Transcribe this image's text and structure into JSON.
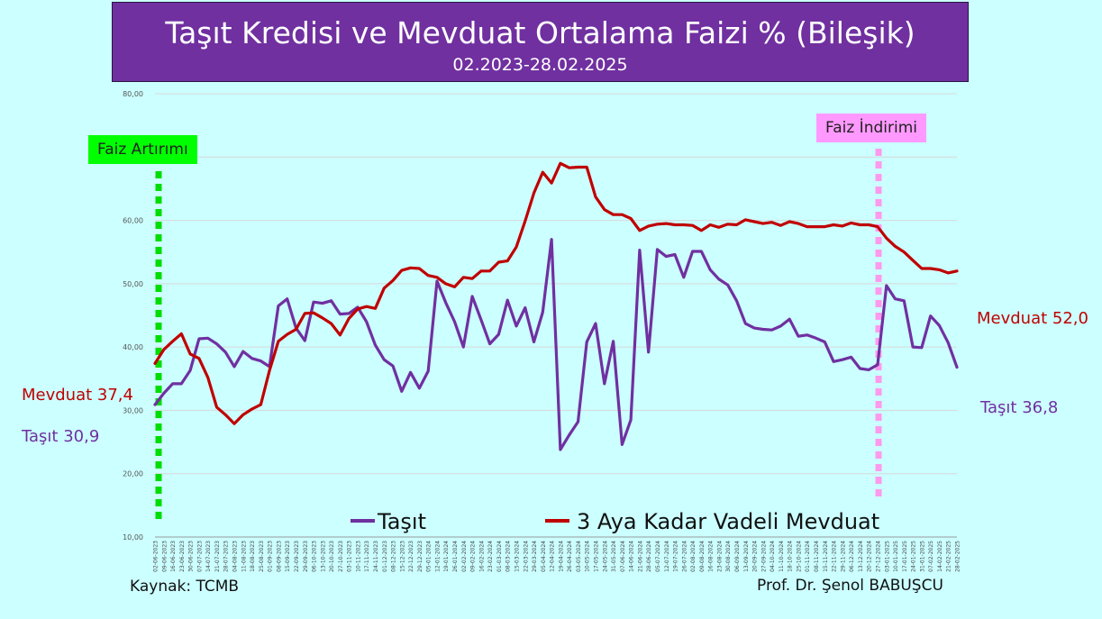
{
  "header": {
    "title": "Taşıt Kredisi ve Mevduat Ortalama Faizi % (Bileşik)",
    "subtitle": "02.2023-28.02.2025"
  },
  "annotations": {
    "rate_hike": "Faiz Artırımı",
    "rate_cut": "Faiz İndirimi",
    "mevduat_start": "Mevduat 37,4",
    "tasit_start": "Taşıt 30,9",
    "mevduat_end": "Mevduat 52,0",
    "tasit_end": "Taşıt 36,8"
  },
  "footer": {
    "source": "Kaynak: TCMB",
    "author": "Prof. Dr. Şenol BABUŞCU"
  },
  "colors": {
    "tasit": "#7030a0",
    "mevduat": "#c00000",
    "hike_marker": "#00dd00",
    "cut_marker": "#ff99ee"
  },
  "chart_data": {
    "type": "line",
    "title": "Taşıt Kredisi ve Mevduat Ortalama Faizi % (Bileşik)",
    "subtitle": "02.2023-28.02.2025",
    "ylim": [
      10,
      80
    ],
    "yticks": [
      "10,00",
      "20,00",
      "30,00",
      "40,00",
      "50,00",
      "60,00",
      "70,00",
      "80,00"
    ],
    "grid": true,
    "legend_position": "bottom",
    "x": [
      "02-06-2023",
      "09-06-2023",
      "16-06-2023",
      "23-06-2023",
      "30-06-2023",
      "07-07-2023",
      "14-07-2023",
      "21-07-2023",
      "28-07-2023",
      "04-08-2023",
      "11-08-2023",
      "18-08-2023",
      "25-08-2023",
      "01-09-2023",
      "08-09-2023",
      "15-09-2023",
      "22-09-2023",
      "29-09-2023",
      "06-10-2023",
      "13-10-2023",
      "20-10-2023",
      "27-10-2023",
      "03-11-2023",
      "10-11-2023",
      "17-11-2023",
      "24-11-2023",
      "01-12-2023",
      "08-12-2023",
      "15-12-2023",
      "22-12-2023",
      "29-12-2023",
      "05-01-2024",
      "12-01-2024",
      "19-01-2024",
      "26-01-2024",
      "02-02-2024",
      "09-02-2024",
      "16-02-2024",
      "23-02-2024",
      "01-03-2024",
      "08-03-2024",
      "15-03-2024",
      "22-03-2024",
      "29-03-2024",
      "05-04-2024",
      "12-04-2024",
      "19-04-2024",
      "26-04-2024",
      "03-05-2024",
      "10-05-2024",
      "17-05-2024",
      "24-05-2024",
      "31-05-2024",
      "07-06-2024",
      "14-06-2024",
      "21-06-2024",
      "28-06-2024",
      "05-07-2024",
      "12-07-2024",
      "19-07-2024",
      "26-07-2024",
      "02-08-2024",
      "09-08-2024",
      "16-08-2024",
      "23-08-2024",
      "30-08-2024",
      "06-09-2024",
      "13-09-2024",
      "20-09-2024",
      "27-09-2024",
      "04-10-2024",
      "11-10-2024",
      "18-10-2024",
      "25-10-2024",
      "01-11-2024",
      "08-11-2024",
      "15-11-2024",
      "22-11-2024",
      "29-11-2024",
      "06-12-2024",
      "13-12-2024",
      "20-12-2024",
      "27-12-2024",
      "03-01-2025",
      "10-01-2025",
      "17-01-2025",
      "24-01-2025",
      "31-01-2025",
      "07-02-2025",
      "14-02-2025",
      "21-02-2025",
      "28-02-2025"
    ],
    "series": [
      {
        "name": "Taşıt",
        "values": [
          30.9,
          32.7,
          34.2,
          34.2,
          36.3,
          41.3,
          41.4,
          40.5,
          39.2,
          36.9,
          39.3,
          38.2,
          37.8,
          36.9,
          46.5,
          47.6,
          43.0,
          41.0,
          47.1,
          46.9,
          47.3,
          45.2,
          45.3,
          46.3,
          44.0,
          40.3,
          38.0,
          37.0,
          33.0,
          36.0,
          33.5,
          36.2,
          50.4,
          47.0,
          44.0,
          40.0,
          48.0,
          44.3,
          40.5,
          42.0,
          47.4,
          43.3,
          46.2,
          40.8,
          45.5,
          57.0,
          23.8,
          26.1,
          28.2,
          40.8,
          43.7,
          34.2,
          40.9,
          24.6,
          28.5,
          55.3,
          39.2,
          55.4,
          54.3,
          54.6,
          51.0,
          55.1,
          55.1,
          52.2,
          50.7,
          49.8,
          47.3,
          43.7,
          43.0,
          42.8,
          42.7,
          43.3,
          44.4,
          41.7,
          41.9,
          41.4,
          40.8,
          37.7,
          38.0,
          38.4,
          36.6,
          36.4,
          37.2,
          49.7,
          47.6,
          47.3,
          40.0,
          39.9,
          44.9,
          43.4,
          40.7,
          36.8
        ]
      },
      {
        "name": "3 Aya Kadar Vadeli Mevduat",
        "values": [
          37.4,
          39.6,
          40.9,
          42.1,
          38.9,
          38.2,
          35.2,
          30.5,
          29.3,
          27.9,
          29.3,
          30.2,
          30.9,
          36.3,
          40.9,
          42.0,
          42.8,
          45.3,
          45.4,
          44.6,
          43.7,
          41.9,
          44.5,
          46.0,
          46.4,
          46.1,
          49.3,
          50.5,
          52.1,
          52.5,
          52.4,
          51.3,
          51.0,
          50.0,
          49.5,
          51.0,
          50.8,
          52.0,
          52.0,
          53.4,
          53.6,
          55.8,
          59.9,
          64.3,
          67.6,
          65.9,
          69.0,
          68.3,
          68.4,
          68.4,
          63.7,
          61.7,
          60.9,
          60.9,
          60.3,
          58.4,
          59.1,
          59.4,
          59.5,
          59.3,
          59.3,
          59.2,
          58.4,
          59.3,
          58.9,
          59.4,
          59.3,
          60.1,
          59.8,
          59.5,
          59.7,
          59.2,
          59.8,
          59.5,
          59.0,
          59.0,
          59.0,
          59.3,
          59.1,
          59.6,
          59.3,
          59.3,
          59.0,
          57.2,
          55.9,
          55.0,
          53.7,
          52.4,
          52.4,
          52.2,
          51.7,
          52.0
        ]
      }
    ]
  }
}
